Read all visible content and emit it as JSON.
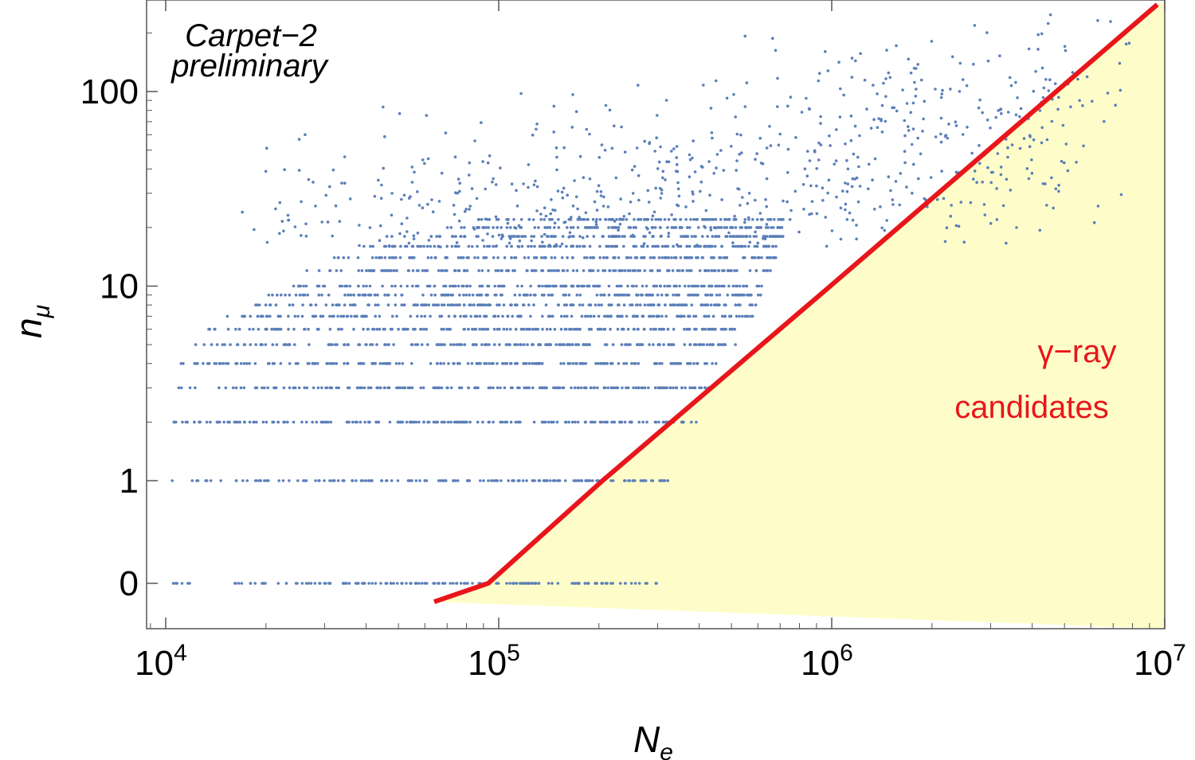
{
  "chart_data": {
    "type": "scatter",
    "x_scale": "log",
    "y_scale": "custom (log above 1, zero shown separately)",
    "xlim": [
      8900,
      10000000
    ],
    "ylim": [
      -0.3,
      280
    ],
    "x_ticks": [
      {
        "value": 10000,
        "base": "10",
        "exp": "4"
      },
      {
        "value": 100000,
        "base": "10",
        "exp": "5"
      },
      {
        "value": 1000000,
        "base": "10",
        "exp": "6"
      },
      {
        "value": 10000000,
        "base": "10",
        "exp": "7"
      }
    ],
    "y_ticks": [
      {
        "value": 0,
        "label": "0"
      },
      {
        "value": 1,
        "label": "1"
      },
      {
        "value": 10,
        "label": "10"
      },
      {
        "value": 100,
        "label": "100"
      }
    ],
    "xlabel": {
      "base": "N",
      "sub": "e"
    },
    "ylabel": {
      "base": "n",
      "sub": "μ"
    },
    "annotation": [
      "Carpet−2",
      "preliminary"
    ],
    "region_label": [
      "γ−ray",
      "candidates"
    ],
    "cut_line": [
      {
        "x": 64000,
        "y": -0.3
      },
      {
        "x": 93000,
        "y": 0
      },
      {
        "x": 205000,
        "y": 1
      },
      {
        "x": 990000,
        "y": 10
      },
      {
        "x": 9500000,
        "y": 280
      }
    ],
    "grid": false,
    "colors": {
      "points": "#5b7fb9",
      "cut_line": "#e8161b",
      "candidate_region": "#fefdc9",
      "axes": "#555555"
    },
    "series": [
      {
        "color": "#5b7fb9",
        "description_levels": "discrete muon counts n_mu = 0..22 as dense horizontal bands, sparse continuous points above",
        "bands": [
          {
            "y": 0,
            "x_min": 10000,
            "x_max": 300000
          },
          {
            "y": 1,
            "x_min": 10000,
            "x_max": 330000
          },
          {
            "y": 2,
            "x_min": 10000,
            "x_max": 400000
          },
          {
            "y": 3,
            "x_min": 10000,
            "x_max": 430000
          },
          {
            "y": 4,
            "x_min": 11000,
            "x_max": 480000
          },
          {
            "y": 5,
            "x_min": 12000,
            "x_max": 520000
          },
          {
            "y": 6,
            "x_min": 13000,
            "x_max": 560000
          },
          {
            "y": 7,
            "x_min": 15000,
            "x_max": 580000
          },
          {
            "y": 8,
            "x_min": 18000,
            "x_max": 600000
          },
          {
            "y": 9,
            "x_min": 20000,
            "x_max": 620000
          },
          {
            "y": 10,
            "x_min": 22000,
            "x_max": 640000
          },
          {
            "y": 12,
            "x_min": 26000,
            "x_max": 660000
          },
          {
            "y": 14,
            "x_min": 32000,
            "x_max": 680000
          },
          {
            "y": 16,
            "x_min": 38000,
            "x_max": 700000
          },
          {
            "y": 18,
            "x_min": 45000,
            "x_max": 720000
          },
          {
            "y": 20,
            "x_min": 60000,
            "x_max": 740000
          },
          {
            "y": 22,
            "x_min": 80000,
            "x_max": 760000
          }
        ]
      }
    ]
  }
}
